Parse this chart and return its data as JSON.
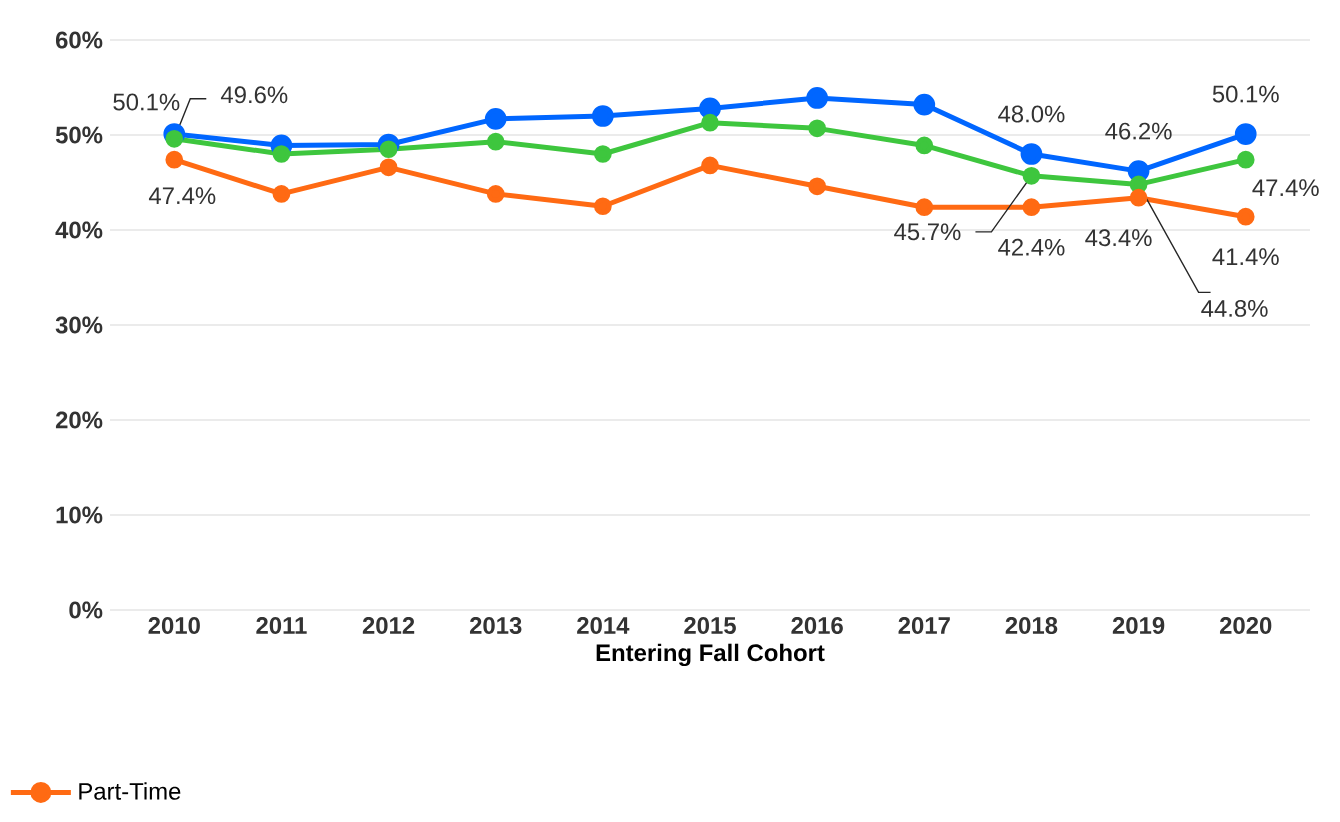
{
  "chart_data": {
    "type": "line",
    "xlabel": "Entering Fall Cohort",
    "categories": [
      "2010",
      "2011",
      "2012",
      "2013",
      "2014",
      "2015",
      "2016",
      "2017",
      "2018",
      "2019",
      "2020"
    ],
    "ylim": [
      0,
      60
    ],
    "yticks": [
      {
        "value": 0,
        "label": "0%"
      },
      {
        "value": 10,
        "label": "10%"
      },
      {
        "value": 20,
        "label": "20%"
      },
      {
        "value": 30,
        "label": "30%"
      },
      {
        "value": 40,
        "label": "40%"
      },
      {
        "value": 50,
        "label": "50%"
      },
      {
        "value": 60,
        "label": "60%"
      }
    ],
    "grid": "y",
    "legend": "bottom",
    "marker": "circle",
    "line_style": "solid",
    "series": [
      {
        "color": "#0066ff",
        "values": [
          50.1,
          48.9,
          49.0,
          51.7,
          52.0,
          52.8,
          53.9,
          53.2,
          48.0,
          46.2,
          50.1
        ],
        "value_labels": [
          "50.1%",
          null,
          null,
          null,
          null,
          null,
          null,
          null,
          "48.0%",
          "46.2%",
          "50.1%"
        ]
      },
      {
        "color": "#3ec63e",
        "values": [
          49.6,
          48.0,
          48.5,
          49.3,
          48.0,
          51.3,
          50.7,
          48.9,
          45.7,
          44.8,
          47.4
        ],
        "value_labels": [
          "49.6%",
          null,
          null,
          null,
          null,
          null,
          null,
          null,
          "45.7%",
          "44.8%",
          "47.4%"
        ]
      },
      {
        "name": "Part-Time",
        "color": "#ff6a13",
        "values": [
          47.4,
          43.8,
          46.6,
          43.8,
          42.5,
          46.8,
          44.6,
          42.4,
          42.4,
          43.4,
          41.4
        ],
        "value_labels": [
          "47.4%",
          null,
          null,
          null,
          null,
          null,
          null,
          null,
          "42.4%",
          "43.4%",
          "41.4%"
        ]
      }
    ]
  }
}
